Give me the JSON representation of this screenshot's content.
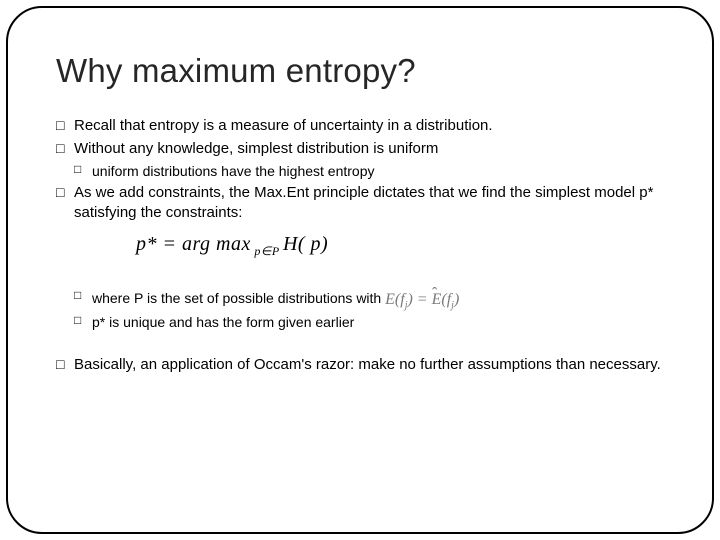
{
  "title": "Why maximum entropy?",
  "bullets": {
    "b1": "Recall that entropy is a measure of uncertainty in a distribution.",
    "b2": "Without any knowledge, simplest distribution is uniform",
    "b2a": "uniform distributions have the highest entropy",
    "b3": "As we add constraints, the Max.Ent principle dictates that we find the simplest model p* satisfying the constraints:",
    "b3a_pre": "where P is the set of possible distributions with",
    "b3b": "p* is unique and has the form given earlier",
    "b4": "Basically, an application of Occam's razor: make no further assumptions than necessary."
  },
  "formula": {
    "main_lhs": "p*",
    "main_eq": " = arg max",
    "main_sub": " p∈P ",
    "main_rhs": " H( p)",
    "inline": "E( f_j) = Ê( f_j)"
  }
}
